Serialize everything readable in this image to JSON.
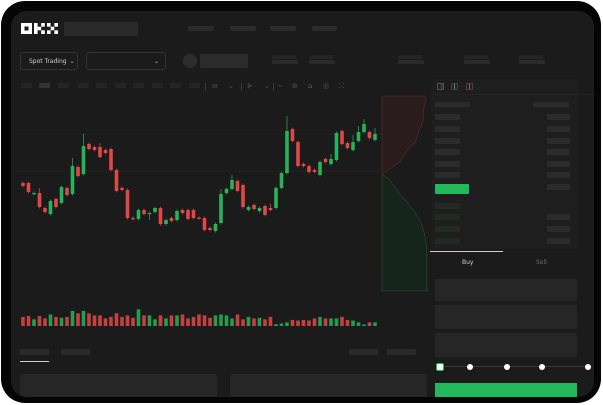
{
  "brand": {
    "logo_text": "OKX"
  },
  "header": {
    "market_selector": {
      "label": "Spot Trading",
      "icon": "chevron-down-icon"
    },
    "pair_selector": {
      "value": "",
      "icon": "chevron-down-icon"
    }
  },
  "order_book": {
    "view_icons": [
      "order-book-both-icon",
      "order-book-bids-icon",
      "order-book-asks-icon"
    ]
  },
  "trade_panel": {
    "tabs": [
      {
        "label": "Buy",
        "active": true
      },
      {
        "label": "Sell",
        "active": false
      }
    ],
    "amount_slider": {
      "value_percent": 0,
      "stops": [
        0,
        25,
        50,
        75,
        100
      ]
    }
  },
  "colors": {
    "up": "#26b35a",
    "down": "#e04848",
    "background": "#1b1b1b",
    "buy_button": "#22b85c"
  },
  "chart_data": {
    "type": "candlestick",
    "candles": [
      {
        "o": 118,
        "c": 115
      },
      {
        "o": 118,
        "c": 109
      },
      {
        "o": 107,
        "c": 108
      },
      {
        "o": 108,
        "c": 94,
        "h": 113
      },
      {
        "o": 93,
        "c": 89
      },
      {
        "o": 87,
        "c": 100
      },
      {
        "o": 102,
        "c": 94
      },
      {
        "o": 98,
        "c": 114
      },
      {
        "o": 113,
        "c": 106
      },
      {
        "o": 107,
        "c": 135,
        "h": 143
      },
      {
        "o": 134,
        "c": 125
      },
      {
        "o": 127,
        "c": 155,
        "h": 167
      },
      {
        "o": 157,
        "c": 152
      },
      {
        "o": 154,
        "c": 151
      },
      {
        "o": 154,
        "c": 144,
        "h": 158
      },
      {
        "o": 151,
        "c": 148
      },
      {
        "o": 152,
        "c": 131
      },
      {
        "o": 131,
        "c": 110
      },
      {
        "o": 113,
        "c": 111
      },
      {
        "o": 111,
        "c": 83
      },
      {
        "o": 83,
        "c": 82
      },
      {
        "o": 82,
        "c": 91
      },
      {
        "o": 91,
        "c": 87
      },
      {
        "o": 87,
        "c": 88,
        "l": 81
      },
      {
        "o": 89,
        "c": 93
      },
      {
        "o": 93,
        "c": 77,
        "l": 75
      },
      {
        "o": 77,
        "c": 81
      },
      {
        "o": 83,
        "c": 80
      },
      {
        "o": 81,
        "c": 90
      },
      {
        "o": 91,
        "c": 88
      },
      {
        "o": 91,
        "c": 82
      },
      {
        "o": 91,
        "c": 83
      },
      {
        "o": 83.3,
        "c": 82.7
      },
      {
        "o": 83,
        "c": 71
      },
      {
        "o": 73,
        "c": 71
      },
      {
        "o": 70,
        "c": 77
      },
      {
        "o": 78,
        "c": 107,
        "h": 112
      },
      {
        "o": 108,
        "c": 112
      },
      {
        "o": 112,
        "c": 121,
        "h": 126
      },
      {
        "o": 120,
        "c": 110
      },
      {
        "o": 116,
        "c": 94
      },
      {
        "o": 91,
        "c": 94
      },
      {
        "o": 96,
        "c": 92
      },
      {
        "o": 90,
        "c": 93
      },
      {
        "o": 95,
        "c": 86
      },
      {
        "o": 93,
        "c": 91,
        "h": 97
      },
      {
        "o": 93,
        "c": 113
      },
      {
        "o": 113,
        "c": 128
      },
      {
        "o": 128,
        "c": 170,
        "h": 185
      },
      {
        "o": 172,
        "c": 160
      },
      {
        "o": 159,
        "c": 135
      },
      {
        "o": 137,
        "c": 135
      },
      {
        "o": 135,
        "c": 129
      },
      {
        "o": 131,
        "c": 129
      },
      {
        "o": 126,
        "c": 139
      },
      {
        "o": 142,
        "c": 139
      },
      {
        "o": 137,
        "c": 142,
        "h": 147
      },
      {
        "o": 141,
        "c": 168
      },
      {
        "o": 170,
        "c": 157
      },
      {
        "o": 158,
        "c": 153
      },
      {
        "o": 151,
        "c": 159,
        "h": 166
      },
      {
        "o": 160,
        "c": 169,
        "h": 175
      },
      {
        "o": 169,
        "c": 177,
        "h": 182
      },
      {
        "o": 169,
        "c": 163
      },
      {
        "o": 161,
        "c": 167,
        "h": 173
      }
    ],
    "volume": [
      30,
      33,
      22,
      33,
      25,
      38,
      30,
      27,
      30,
      50,
      42,
      50,
      42,
      35,
      35,
      25,
      30,
      42,
      30,
      35,
      27,
      55,
      35,
      35,
      22,
      35,
      25,
      35,
      35,
      38,
      25,
      30,
      38,
      35,
      27,
      35,
      38,
      35,
      25,
      38,
      22,
      30,
      25,
      27,
      22,
      30,
      6,
      8,
      12,
      20,
      18,
      20,
      18,
      25,
      30,
      25,
      25,
      25,
      30,
      20,
      18,
      12,
      5,
      12,
      12
    ],
    "reference_lines": [
      167,
      130
    ],
    "ylim": [
      60,
      205
    ]
  }
}
